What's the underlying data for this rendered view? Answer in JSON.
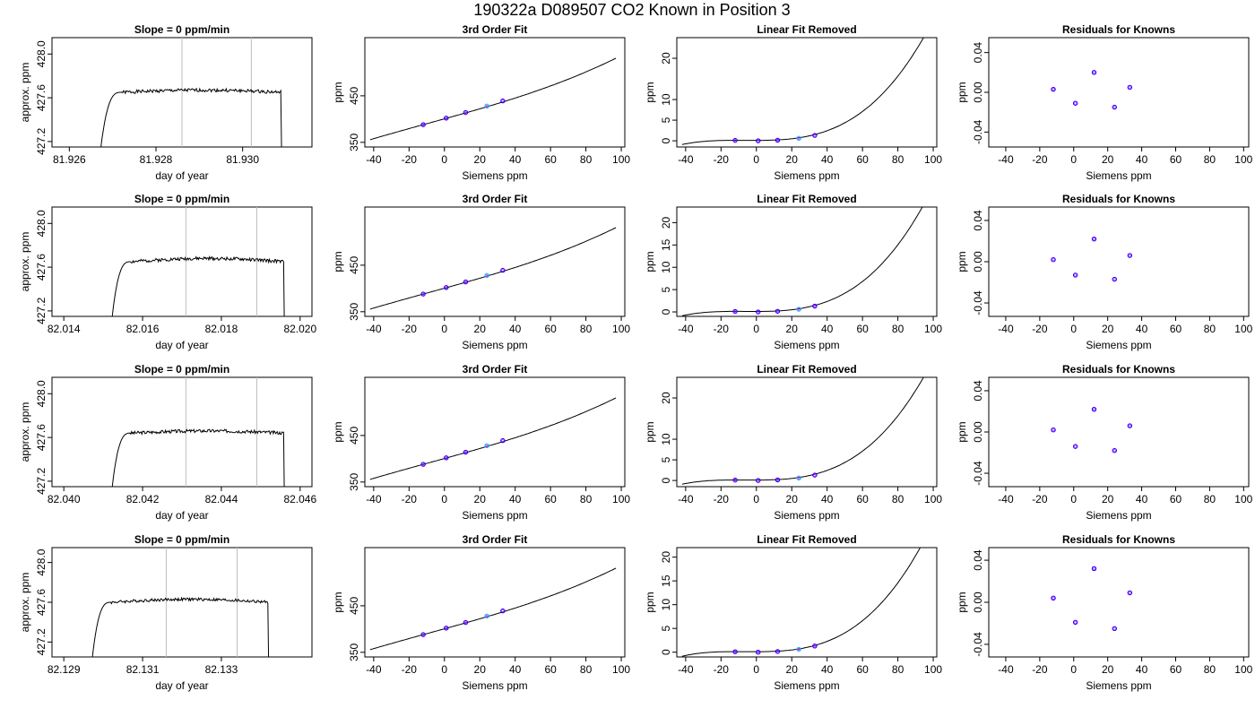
{
  "figure_title": "190322a     D089507   CO2 Known in Position  3",
  "chart_data": [
    {
      "type": "line",
      "title": "Slope =  0  ppm/min",
      "xlabel": "day of year",
      "ylabel": "approx. ppm",
      "xlim": [
        81.9256,
        81.9316
      ],
      "ylim": [
        427.15,
        428.15
      ],
      "xticks": [
        81.926,
        81.928,
        81.93
      ],
      "xtick_labels": [
        "81.926",
        "81.928",
        "81.930"
      ],
      "yticks": [
        427.2,
        427.6,
        428.0
      ],
      "ytick_labels": [
        "427.2",
        "427.6",
        "428.0"
      ],
      "vlines": [
        81.9286,
        81.9302
      ],
      "trace": {
        "start": 81.9267,
        "ramp_end": 81.9272,
        "end": 81.9309,
        "level": 427.65,
        "drift": 0.02,
        "seed": 1
      }
    },
    {
      "type": "line",
      "title": "3rd Order Fit",
      "xlabel": "Siemens ppm",
      "ylabel": "ppm",
      "xlim": [
        -45,
        102
      ],
      "ylim": [
        340,
        575
      ],
      "xticks": [
        -40,
        -20,
        0,
        20,
        40,
        60,
        80,
        100
      ],
      "xtick_labels": [
        "-40",
        "-20",
        "0",
        "20",
        "40",
        "60",
        "80",
        "100"
      ],
      "yticks": [
        350,
        450
      ],
      "ytick_labels": [
        "350",
        "450"
      ],
      "curve": {
        "x0": -42,
        "x1": 97,
        "kind": "fit3"
      },
      "points": [
        {
          "x": -12,
          "y": 388
        },
        {
          "x": 1,
          "y": 402
        },
        {
          "x": 12,
          "y": 414
        },
        {
          "x": 24,
          "y": 428
        },
        {
          "x": 33,
          "y": 439
        }
      ],
      "highlight_index": 3
    },
    {
      "type": "line",
      "title": "Linear Fit Removed",
      "xlabel": "Siemens ppm",
      "ylabel": "ppm",
      "xlim": [
        -45,
        102
      ],
      "ylim": [
        -1.5,
        25
      ],
      "xticks": [
        -40,
        -20,
        0,
        20,
        40,
        60,
        80,
        100
      ],
      "xtick_labels": [
        "-40",
        "-20",
        "0",
        "20",
        "40",
        "60",
        "80",
        "100"
      ],
      "yticks": [
        0,
        5,
        10,
        20
      ],
      "ytick_labels": [
        "0",
        "5",
        "10",
        "20"
      ],
      "curve": {
        "x0": -42,
        "x1": 97,
        "kind": "cubic",
        "c": 2.45e-05
      },
      "points": [
        {
          "x": -12,
          "y": 0.1
        },
        {
          "x": 1,
          "y": 0
        },
        {
          "x": 12,
          "y": 0.15
        },
        {
          "x": 24,
          "y": 0.6
        },
        {
          "x": 33,
          "y": 1.3
        }
      ],
      "highlight_index": 3
    },
    {
      "type": "scatter",
      "title": "Residuals for Knowns",
      "xlabel": "Siemens ppm",
      "ylabel": "ppm",
      "xlim": [
        -50,
        103
      ],
      "ylim": [
        -0.055,
        0.055
      ],
      "xticks": [
        -40,
        -20,
        0,
        20,
        40,
        60,
        80,
        100
      ],
      "xtick_labels": [
        "-40",
        "-20",
        "0",
        "20",
        "40",
        "60",
        "80",
        "100"
      ],
      "yticks": [
        -0.04,
        0.0,
        0.04
      ],
      "ytick_labels": [
        "-0.04",
        "0.00",
        "0.04"
      ],
      "points": [
        {
          "x": -12,
          "y": 0.003
        },
        {
          "x": 1,
          "y": -0.011
        },
        {
          "x": 12,
          "y": 0.02
        },
        {
          "x": 24,
          "y": -0.015
        },
        {
          "x": 33,
          "y": 0.005
        }
      ]
    },
    {
      "type": "line",
      "title": "Slope =  0  ppm/min",
      "xlabel": "day of year",
      "ylabel": "approx. ppm",
      "xlim": [
        82.0137,
        82.0203
      ],
      "ylim": [
        427.15,
        428.15
      ],
      "xticks": [
        82.014,
        82.016,
        82.018,
        82.02
      ],
      "xtick_labels": [
        "82.014",
        "82.016",
        "82.018",
        "82.020"
      ],
      "yticks": [
        427.2,
        427.6,
        428.0
      ],
      "ytick_labels": [
        "427.2",
        "427.6",
        "428.0"
      ],
      "vlines": [
        82.0171,
        82.0189
      ],
      "trace": {
        "start": 82.0152,
        "ramp_end": 82.0157,
        "end": 82.0196,
        "level": 427.65,
        "drift": 0.03,
        "seed": 2
      }
    },
    {
      "type": "line",
      "title": "3rd Order Fit",
      "xlabel": "Siemens ppm",
      "ylabel": "ppm",
      "xlim": [
        -45,
        102
      ],
      "ylim": [
        340,
        575
      ],
      "xticks": [
        -40,
        -20,
        0,
        20,
        40,
        60,
        80,
        100
      ],
      "xtick_labels": [
        "-40",
        "-20",
        "0",
        "20",
        "40",
        "60",
        "80",
        "100"
      ],
      "yticks": [
        350,
        450
      ],
      "ytick_labels": [
        "350",
        "450"
      ],
      "curve": {
        "x0": -42,
        "x1": 97,
        "kind": "fit3"
      },
      "points": [
        {
          "x": -12,
          "y": 388
        },
        {
          "x": 1,
          "y": 402
        },
        {
          "x": 12,
          "y": 414
        },
        {
          "x": 24,
          "y": 428
        },
        {
          "x": 33,
          "y": 439
        }
      ],
      "highlight_index": 3
    },
    {
      "type": "line",
      "title": "Linear Fit Removed",
      "xlabel": "Siemens ppm",
      "ylabel": "ppm",
      "xlim": [
        -45,
        102
      ],
      "ylim": [
        -1,
        23.5
      ],
      "xticks": [
        -40,
        -20,
        0,
        20,
        40,
        60,
        80,
        100
      ],
      "xtick_labels": [
        "-40",
        "-20",
        "0",
        "20",
        "40",
        "60",
        "80",
        "100"
      ],
      "yticks": [
        0,
        5,
        10,
        15,
        20
      ],
      "ytick_labels": [
        "0",
        "5",
        "10",
        "15",
        "20"
      ],
      "curve": {
        "x0": -42,
        "x1": 97,
        "kind": "cubic",
        "c": 2.35e-05
      },
      "points": [
        {
          "x": -12,
          "y": 0.1
        },
        {
          "x": 1,
          "y": 0
        },
        {
          "x": 12,
          "y": 0.15
        },
        {
          "x": 24,
          "y": 0.6
        },
        {
          "x": 33,
          "y": 1.3
        }
      ],
      "highlight_index": 3
    },
    {
      "type": "scatter",
      "title": "Residuals for Knowns",
      "xlabel": "Siemens ppm",
      "ylabel": "ppm",
      "xlim": [
        -50,
        103
      ],
      "ylim": [
        -0.053,
        0.053
      ],
      "xticks": [
        -40,
        -20,
        0,
        20,
        40,
        60,
        80,
        100
      ],
      "xtick_labels": [
        "-40",
        "-20",
        "0",
        "20",
        "40",
        "60",
        "80",
        "100"
      ],
      "yticks": [
        -0.04,
        0.0,
        0.04
      ],
      "ytick_labels": [
        "-0.04",
        "0.00",
        "0.04"
      ],
      "points": [
        {
          "x": -12,
          "y": 0.002
        },
        {
          "x": 1,
          "y": -0.013
        },
        {
          "x": 12,
          "y": 0.022
        },
        {
          "x": 24,
          "y": -0.017
        },
        {
          "x": 33,
          "y": 0.006
        }
      ]
    },
    {
      "type": "line",
      "title": "Slope =  0  ppm/min",
      "xlabel": "day of year",
      "ylabel": "approx. ppm",
      "xlim": [
        82.0397,
        82.0463
      ],
      "ylim": [
        427.15,
        428.15
      ],
      "xticks": [
        82.04,
        82.042,
        82.044,
        82.046
      ],
      "xtick_labels": [
        "82.040",
        "82.042",
        "82.044",
        "82.046"
      ],
      "yticks": [
        427.2,
        427.6,
        428.0
      ],
      "ytick_labels": [
        "427.2",
        "427.6",
        "428.0"
      ],
      "vlines": [
        82.0431,
        82.0449
      ],
      "trace": {
        "start": 82.0412,
        "ramp_end": 82.0417,
        "end": 82.0456,
        "level": 427.64,
        "drift": 0.02,
        "seed": 3
      }
    },
    {
      "type": "line",
      "title": "3rd Order Fit",
      "xlabel": "Siemens ppm",
      "ylabel": "ppm",
      "xlim": [
        -45,
        102
      ],
      "ylim": [
        340,
        575
      ],
      "xticks": [
        -40,
        -20,
        0,
        20,
        40,
        60,
        80,
        100
      ],
      "xtick_labels": [
        "-40",
        "-20",
        "0",
        "20",
        "40",
        "60",
        "80",
        "100"
      ],
      "yticks": [
        350,
        450
      ],
      "ytick_labels": [
        "350",
        "450"
      ],
      "curve": {
        "x0": -42,
        "x1": 97,
        "kind": "fit3"
      },
      "points": [
        {
          "x": -12,
          "y": 388
        },
        {
          "x": 1,
          "y": 402
        },
        {
          "x": 12,
          "y": 414
        },
        {
          "x": 24,
          "y": 428
        },
        {
          "x": 33,
          "y": 439
        }
      ],
      "highlight_index": 3
    },
    {
      "type": "line",
      "title": "Linear Fit Removed",
      "xlabel": "Siemens ppm",
      "ylabel": "ppm",
      "xlim": [
        -45,
        102
      ],
      "ylim": [
        -1.5,
        25
      ],
      "xticks": [
        -40,
        -20,
        0,
        20,
        40,
        60,
        80,
        100
      ],
      "xtick_labels": [
        "-40",
        "-20",
        "0",
        "20",
        "40",
        "60",
        "80",
        "100"
      ],
      "yticks": [
        0,
        5,
        10,
        20
      ],
      "ytick_labels": [
        "0",
        "5",
        "10",
        "20"
      ],
      "curve": {
        "x0": -42,
        "x1": 97,
        "kind": "cubic",
        "c": 2.45e-05
      },
      "points": [
        {
          "x": -12,
          "y": 0.1
        },
        {
          "x": 1,
          "y": 0
        },
        {
          "x": 12,
          "y": 0.15
        },
        {
          "x": 24,
          "y": 0.6
        },
        {
          "x": 33,
          "y": 1.3
        }
      ],
      "highlight_index": 3
    },
    {
      "type": "scatter",
      "title": "Residuals for Knowns",
      "xlabel": "Siemens ppm",
      "ylabel": "ppm",
      "xlim": [
        -50,
        103
      ],
      "ylim": [
        -0.053,
        0.053
      ],
      "xticks": [
        -40,
        -20,
        0,
        20,
        40,
        60,
        80,
        100
      ],
      "xtick_labels": [
        "-40",
        "-20",
        "0",
        "20",
        "40",
        "60",
        "80",
        "100"
      ],
      "yticks": [
        -0.04,
        0.0,
        0.04
      ],
      "ytick_labels": [
        "-0.04",
        "0.00",
        "0.04"
      ],
      "points": [
        {
          "x": -12,
          "y": 0.002
        },
        {
          "x": 1,
          "y": -0.014
        },
        {
          "x": 12,
          "y": 0.022
        },
        {
          "x": 24,
          "y": -0.018
        },
        {
          "x": 33,
          "y": 0.006
        }
      ]
    },
    {
      "type": "line",
      "title": "Slope =  0  ppm/min",
      "xlabel": "day of year",
      "ylabel": "approx. ppm",
      "xlim": [
        82.1287,
        82.1353
      ],
      "ylim": [
        427.05,
        428.15
      ],
      "xticks": [
        82.129,
        82.131,
        82.133
      ],
      "xtick_labels": [
        "82.129",
        "82.131",
        "82.133"
      ],
      "yticks": [
        427.2,
        427.6,
        428.0
      ],
      "ytick_labels": [
        "427.2",
        "427.6",
        "428.0"
      ],
      "vlines": [
        82.1316,
        82.1334
      ],
      "trace": {
        "start": 82.1297,
        "ramp_end": 82.1302,
        "end": 82.1342,
        "level": 427.6,
        "drift": 0.03,
        "seed": 4
      }
    },
    {
      "type": "line",
      "title": "3rd Order Fit",
      "xlabel": "Siemens ppm",
      "ylabel": "ppm",
      "xlim": [
        -45,
        102
      ],
      "ylim": [
        340,
        575
      ],
      "xticks": [
        -40,
        -20,
        0,
        20,
        40,
        60,
        80,
        100
      ],
      "xtick_labels": [
        "-40",
        "-20",
        "0",
        "20",
        "40",
        "60",
        "80",
        "100"
      ],
      "yticks": [
        350,
        450
      ],
      "ytick_labels": [
        "350",
        "450"
      ],
      "curve": {
        "x0": -42,
        "x1": 97,
        "kind": "fit3"
      },
      "points": [
        {
          "x": -12,
          "y": 388
        },
        {
          "x": 1,
          "y": 402
        },
        {
          "x": 12,
          "y": 414
        },
        {
          "x": 24,
          "y": 428
        },
        {
          "x": 33,
          "y": 439
        }
      ],
      "highlight_index": 3
    },
    {
      "type": "line",
      "title": "Linear Fit Removed",
      "xlabel": "Siemens ppm",
      "ylabel": "ppm",
      "xlim": [
        -45,
        102
      ],
      "ylim": [
        -1,
        22
      ],
      "xticks": [
        -40,
        -20,
        0,
        20,
        40,
        60,
        80,
        100
      ],
      "xtick_labels": [
        "-40",
        "-20",
        "0",
        "20",
        "40",
        "60",
        "80",
        "100"
      ],
      "yticks": [
        0,
        5,
        10,
        15,
        20
      ],
      "ytick_labels": [
        "0",
        "5",
        "10",
        "15",
        "20"
      ],
      "curve": {
        "x0": -42,
        "x1": 97,
        "kind": "cubic",
        "c": 2.28e-05
      },
      "points": [
        {
          "x": -12,
          "y": 0.1
        },
        {
          "x": 1,
          "y": 0
        },
        {
          "x": 12,
          "y": 0.15
        },
        {
          "x": 24,
          "y": 0.6
        },
        {
          "x": 33,
          "y": 1.3
        }
      ],
      "highlight_index": 3
    },
    {
      "type": "scatter",
      "title": "Residuals for Knowns",
      "xlabel": "Siemens ppm",
      "ylabel": "ppm",
      "xlim": [
        -50,
        103
      ],
      "ylim": [
        -0.052,
        0.052
      ],
      "xticks": [
        -40,
        -20,
        0,
        20,
        40,
        60,
        80,
        100
      ],
      "xtick_labels": [
        "-40",
        "-20",
        "0",
        "20",
        "40",
        "60",
        "80",
        "100"
      ],
      "yticks": [
        -0.04,
        0.0,
        0.04
      ],
      "ytick_labels": [
        "-0.04",
        "0.00",
        "0.04"
      ],
      "points": [
        {
          "x": -12,
          "y": 0.004
        },
        {
          "x": 1,
          "y": -0.019
        },
        {
          "x": 12,
          "y": 0.032
        },
        {
          "x": 24,
          "y": -0.025
        },
        {
          "x": 33,
          "y": 0.009
        }
      ]
    }
  ],
  "colors": {
    "axis": "#000000",
    "trace": "#000000",
    "vline": "#bebebe",
    "point": "#0000ff",
    "point_inner": "#ff00ff",
    "highlight": "#00bfff"
  }
}
